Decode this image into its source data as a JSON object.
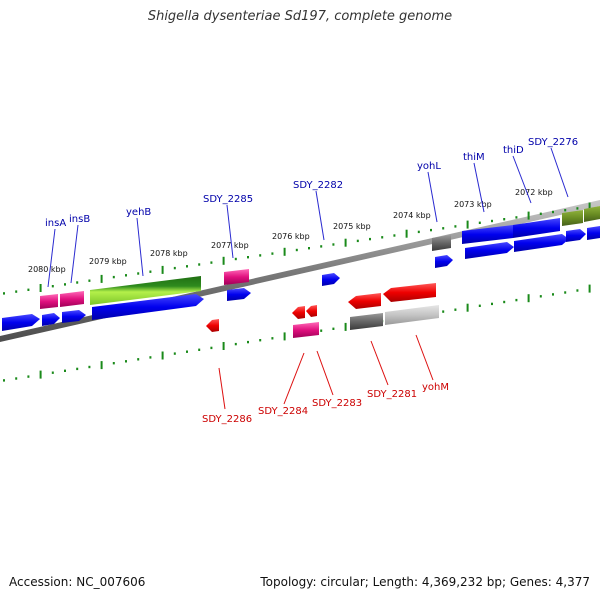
{
  "title": "Shigella dysenteriae Sd197, complete genome",
  "footer": {
    "accession": "Accession: NC_007606",
    "summary": "Topology: circular; Length: 4,369,232 bp; Genes: 4,377"
  },
  "colors": {
    "tick": "#1a8a1a",
    "blue": "#0000ee",
    "red": "#ee0000",
    "pink": "#e0107e",
    "green": "#2e8b1e",
    "lightgreen": "#a8e83a",
    "olive": "#6b8e23",
    "gray": "#666666",
    "lightgray": "#bdbdbd",
    "backbone": "#808080",
    "label_top": "#0000aa",
    "label_bottom": "#cc0000"
  },
  "scale_labels": [
    "2080 kbp",
    "2079 kbp",
    "2078 kbp",
    "2077 kbp",
    "2076 kbp",
    "2075 kbp",
    "2074 kbp",
    "2073 kbp",
    "2072 kbp"
  ],
  "gene_labels_top": [
    "insA",
    "insB",
    "yehB",
    "SDY_2285",
    "SDY_2282",
    "yohL",
    "thiM",
    "thiD",
    "SDY_2276"
  ],
  "gene_labels_bottom": [
    "SDY_2286",
    "SDY_2284",
    "SDY_2283",
    "SDY_2281",
    "yohM"
  ]
}
